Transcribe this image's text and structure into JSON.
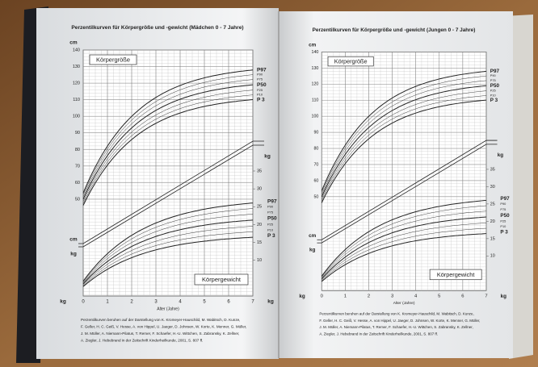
{
  "pages": [
    {
      "title": "Perzentilkurven für Körpergröße und -gewicht (Mädchen 0 - 7 Jahre)",
      "height_label": "Körpergröße",
      "weight_label": "Körpergewicht",
      "unit_cm": "cm",
      "unit_kg": "kg",
      "height_ticks": [
        140,
        130,
        120,
        110,
        100,
        90,
        80,
        70,
        60,
        50
      ],
      "weight_ticks": [
        35,
        30,
        25,
        20,
        15,
        10
      ],
      "age_ticks": [
        0,
        1,
        2,
        3,
        4,
        5,
        6,
        7
      ],
      "x_label": "Alter (Jahre)",
      "percentiles": [
        "P97",
        "P90",
        "P75",
        "P50",
        "P25",
        "P10",
        "P 3"
      ],
      "footnote": [
        "Perzentilkurven beruhen auf der Darstellung von K. Kromeyer-Hauschild, M. Wabitsch, D. Kunze,",
        "F. Geller, H. C. Geiß, V. Hesse, A. von Hippel, U. Jaeger, D. Johnsen, W. Korte, K. Menner, G. Müller,",
        "J. M. Müller, A. Niemann-Pilatus, T. Remer, F. Schaefer, H.-U. Wittchen, S. Zabransky, K. Zellner,",
        "A. Ziegler, J. Hebebrand in der Zeitschrift Kinderheilkunde, 2001, S. 807 ff."
      ]
    },
    {
      "title": "Perzentilkurven für Körpergröße und -gewicht (Jungen 0 - 7 Jahre)",
      "height_label": "Körpergröße",
      "weight_label": "Körpergewicht",
      "unit_cm": "cm",
      "unit_kg": "kg",
      "height_ticks": [
        140,
        130,
        120,
        110,
        100,
        90,
        80,
        70,
        60,
        50
      ],
      "weight_ticks": [
        35,
        30,
        25,
        20,
        15,
        10
      ],
      "age_ticks": [
        0,
        1,
        2,
        3,
        4,
        5,
        6,
        7
      ],
      "x_label": "Alter (Jahre)",
      "percentiles": [
        "P97",
        "P90",
        "P75",
        "P50",
        "P25",
        "P10",
        "P 3"
      ],
      "footnote": [
        "Perzentilkurven beruhen auf der Darstellung von K. Kromeyer-Hauschild, M. Wabitsch, D. Kunze,",
        "F. Geller, H. C. Geiß, V. Hesse, A. von Hippel, U. Jaeger, D. Johnsen, W. Korte, K. Menner, G. Müller,",
        "J. M. Müller, A. Niemann-Pilatus, T. Remer, F. Schaefer, H.-U. Wittchen, S. Zabransky, K. Zellner,",
        "A. Ziegler, J. Hebebrand in der Zeitschrift Kinderheilkunde, 2001, S. 807 ff."
      ]
    }
  ]
}
